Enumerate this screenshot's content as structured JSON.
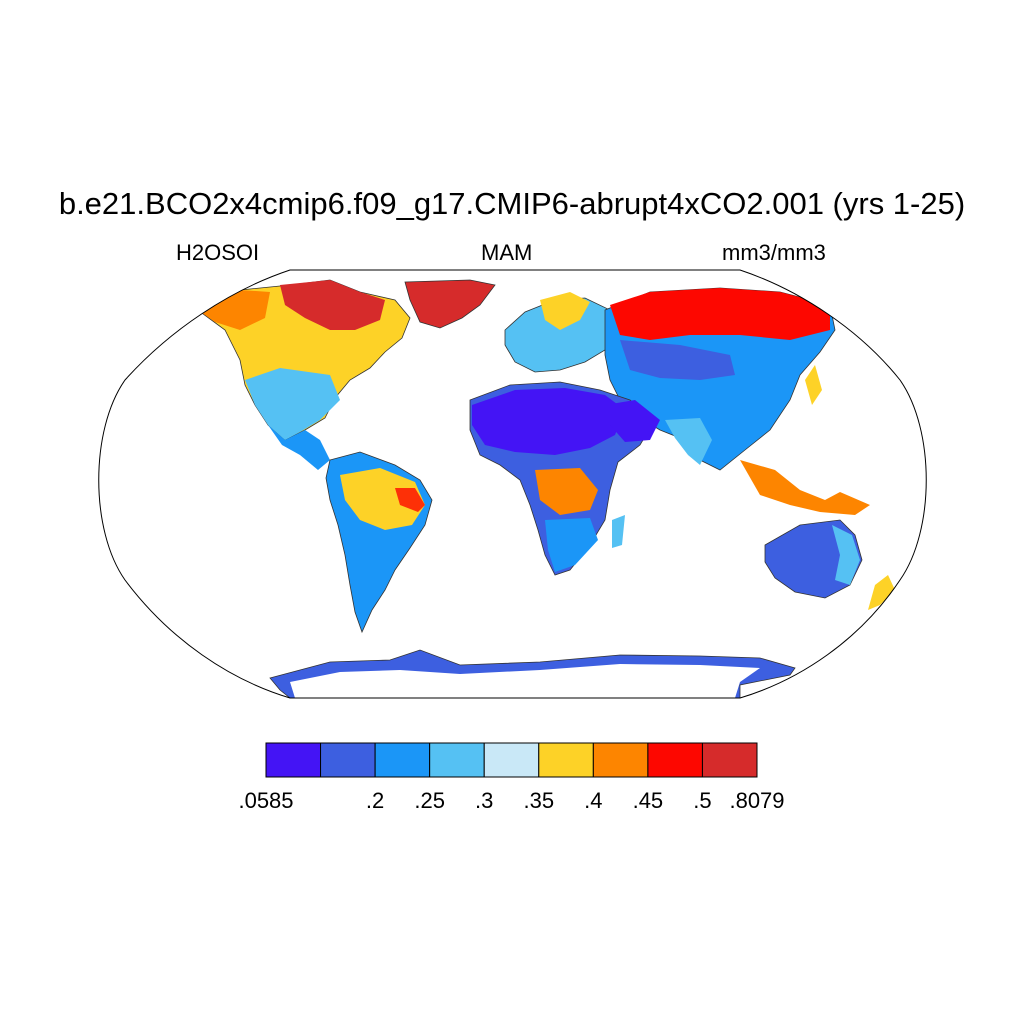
{
  "title": "b.e21.BCO2x4cmip6.f09_g17.CMIP6-abrupt4xCO2.001 (yrs 1-25)",
  "subtitle_left": "H2OSOI",
  "subtitle_center": "MAM",
  "subtitle_right": "mm3/mm3",
  "map": {
    "projection": "Robinson",
    "variable": "H2OSOI",
    "season": "MAM"
  },
  "colorbar": {
    "colors": [
      "#4414f5",
      "#3d5fe0",
      "#1b96f7",
      "#55c1f3",
      "#c9e8f7",
      "#fdd227",
      "#fd8500",
      "#fd0700",
      "#d62b2b"
    ],
    "labels": [
      ".0585",
      ".2",
      ".25",
      ".3",
      ".35",
      ".4",
      ".45",
      ".5",
      ".8079"
    ],
    "label_positions": [
      0,
      2,
      3,
      4,
      5,
      6,
      7,
      8,
      9
    ]
  },
  "regions": [
    {
      "name": "greenland",
      "color": "#d62b2b"
    },
    {
      "name": "sahara",
      "color": "#4414f5"
    },
    {
      "name": "siberia",
      "color": "#fd0700"
    },
    {
      "name": "australia",
      "color": "#3d5fe0"
    },
    {
      "name": "antarctica",
      "color": "#3d5fe0"
    }
  ]
}
